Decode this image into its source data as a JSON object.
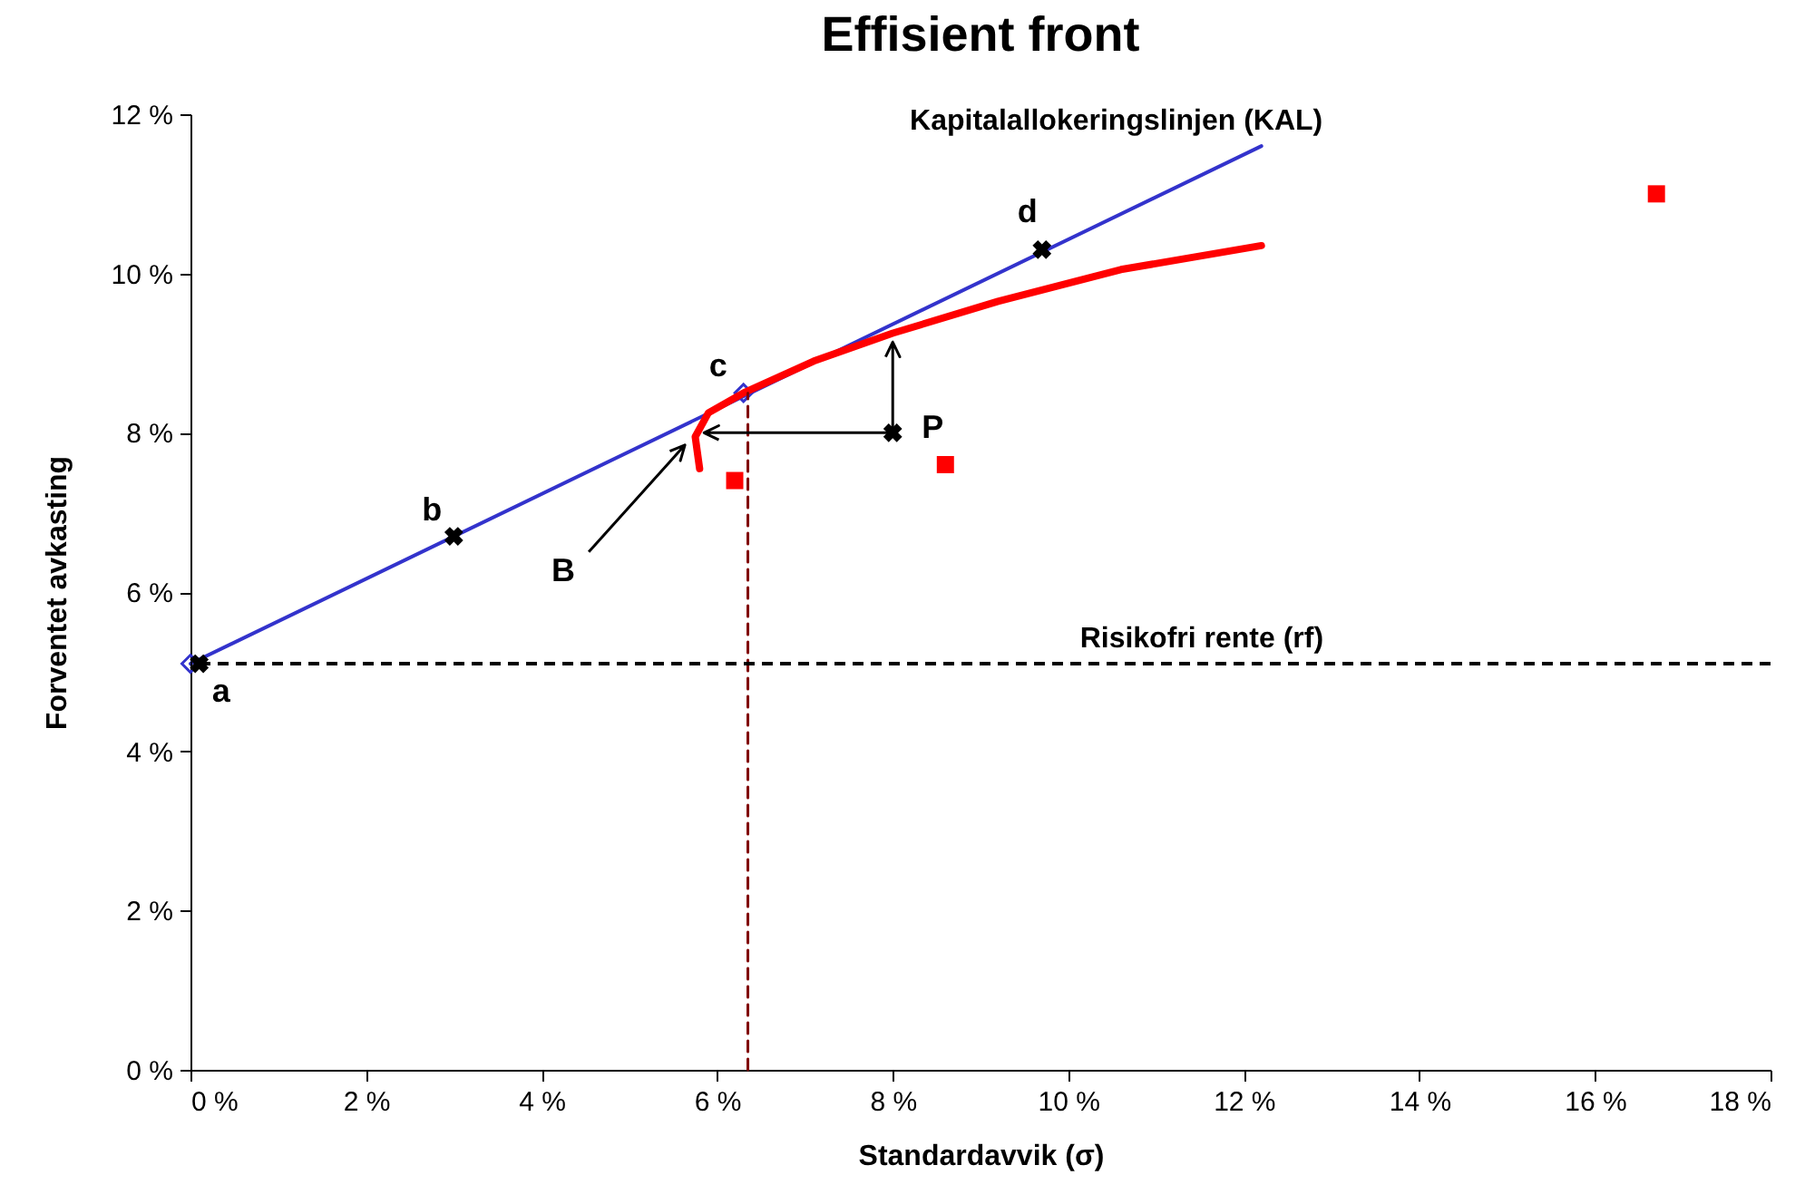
{
  "chart_data": {
    "type": "line",
    "title": "Effisient front",
    "xlabel": "Standardavvik (σ)",
    "ylabel": "Forventet avkasting",
    "xlim": [
      0,
      18
    ],
    "ylim": [
      0,
      12
    ],
    "xticks": [
      {
        "value": 0,
        "label": "0 %"
      },
      {
        "value": 2,
        "label": "2 %"
      },
      {
        "value": 4,
        "label": "4 %"
      },
      {
        "value": 6,
        "label": "6 %"
      },
      {
        "value": 8,
        "label": "8 %"
      },
      {
        "value": 10,
        "label": "10 %"
      },
      {
        "value": 12,
        "label": "12 %"
      },
      {
        "value": 14,
        "label": "14 %"
      },
      {
        "value": 16,
        "label": "16 %"
      },
      {
        "value": 18,
        "label": "18 %"
      }
    ],
    "yticks": [
      {
        "value": 0,
        "label": "0 %"
      },
      {
        "value": 2,
        "label": "2 %"
      },
      {
        "value": 4,
        "label": "4 %"
      },
      {
        "value": 6,
        "label": "6 %"
      },
      {
        "value": 8,
        "label": "8 %"
      },
      {
        "value": 10,
        "label": "10 %"
      },
      {
        "value": 12,
        "label": "12 %"
      }
    ],
    "series": [
      {
        "color": "#3333cc",
        "x": [
          0,
          12.2
        ],
        "values": [
          5.1,
          11.6
        ]
      },
      {
        "type": "scatter",
        "marker": "diamond",
        "color": "#3333cc",
        "x": [
          0,
          6.3
        ],
        "values": [
          5.1,
          8.5
        ]
      },
      {
        "color": "#ff0000",
        "x": [
          5.8,
          5.75,
          5.9,
          6.3,
          7.1,
          8.0,
          9.2,
          10.6,
          12.2
        ],
        "values": [
          7.55,
          7.95,
          8.25,
          8.5,
          8.9,
          9.25,
          9.65,
          10.05,
          10.35
        ]
      },
      {
        "type": "scatter",
        "marker": "square",
        "color": "#ff0000",
        "x": [
          6.2,
          8.6,
          16.7
        ],
        "values": [
          7.4,
          7.6,
          11.0
        ]
      },
      {
        "type": "scatter",
        "marker": "cross",
        "color": "#000000",
        "x": [
          0.1,
          3.0,
          9.7,
          8.0
        ],
        "values": [
          5.1,
          6.7,
          10.3,
          8.0
        ]
      },
      {
        "color": "#800000",
        "line_style": "dashed",
        "x": [
          6.35,
          6.35
        ],
        "values": [
          0,
          8.5
        ]
      }
    ],
    "ref_lines": [
      {
        "axis": "y",
        "value": 5.1,
        "label": "Risikofri rente (rf)",
        "color": "#000000",
        "line_style": "dashed"
      }
    ],
    "annotations": [
      {
        "text": "a",
        "x": 0.1,
        "y": 5.1
      },
      {
        "text": "b",
        "x": 3.0,
        "y": 6.7
      },
      {
        "text": "c",
        "x": 6.3,
        "y": 8.5
      },
      {
        "text": "d",
        "x": 9.7,
        "y": 10.3
      },
      {
        "text": "P",
        "x": 8.0,
        "y": 8.0
      },
      "B",
      {
        "text": "Kapitalallokeringslinjen (KAL)",
        "x": 12.2,
        "y": 11.6
      }
    ]
  }
}
